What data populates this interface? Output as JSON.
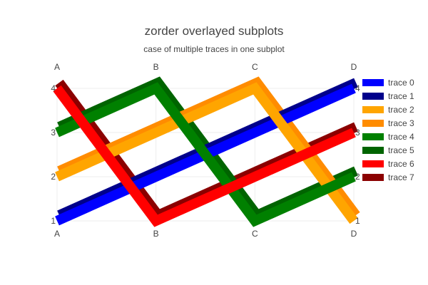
{
  "title": "zorder overlayed subplots",
  "subtitle": "case of multiple traces in one subplot",
  "chart_data": {
    "type": "line",
    "x": [
      "A",
      "B",
      "C",
      "D"
    ],
    "ylim": [
      1,
      4
    ],
    "y_ticks": [
      1,
      2,
      3,
      4
    ],
    "grid": true,
    "legend_position": "right",
    "series": [
      {
        "name": "trace 0",
        "color": "#0000ff",
        "values": [
          1,
          2,
          3,
          4
        ]
      },
      {
        "name": "trace 1",
        "color": "#00008b",
        "values": [
          1,
          2,
          3,
          4
        ]
      },
      {
        "name": "trace 2",
        "color": "#ffa500",
        "values": [
          2,
          3,
          4,
          1
        ]
      },
      {
        "name": "trace 3",
        "color": "#ff8c00",
        "values": [
          2,
          3,
          4,
          1
        ]
      },
      {
        "name": "trace 4",
        "color": "#008000",
        "values": [
          3,
          4,
          1,
          2
        ]
      },
      {
        "name": "trace 5",
        "color": "#006400",
        "values": [
          3,
          4,
          1,
          2
        ]
      },
      {
        "name": "trace 6",
        "color": "#ff0000",
        "values": [
          4,
          1,
          2,
          3
        ]
      },
      {
        "name": "trace 7",
        "color": "#8b0000",
        "values": [
          4,
          1,
          2,
          3
        ]
      }
    ]
  }
}
